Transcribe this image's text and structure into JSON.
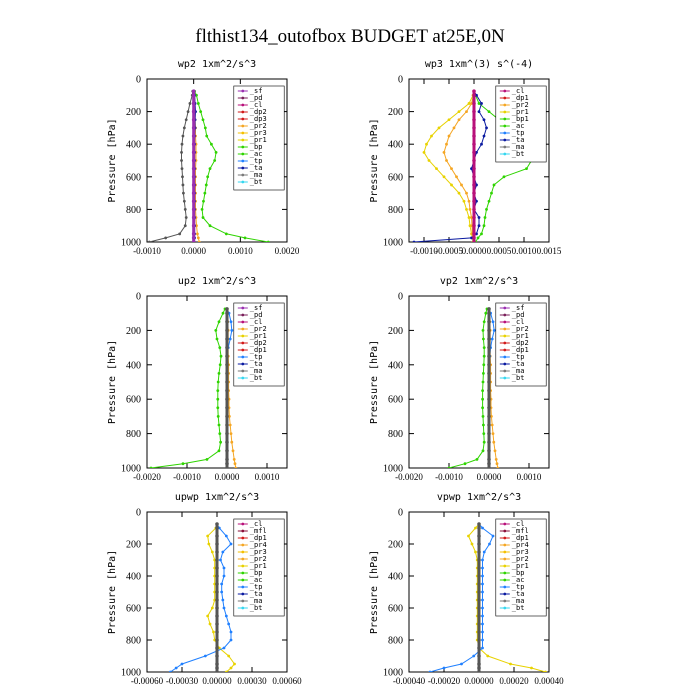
{
  "figure": {
    "title": "flthist134_outofbox  BUDGET at25E,0N"
  },
  "colors": {
    "sf": "#9a2fb0",
    "pd": "#7a1f5a",
    "cl": "#b8107a",
    "mfl": "#8a0f3a",
    "dp1": "#d21a1a",
    "dp2": "#d21a1a",
    "dp4": "#d21a1a",
    "pr1": "#e8d200",
    "pr2": "#f5a623",
    "pr3": "#f5c000",
    "bp": "#2fd400",
    "bp1": "#2fd400",
    "ac": "#2fd400",
    "tp": "#2080ff",
    "ta": "#0a1aa0",
    "ma": "#7a7a7a",
    "bt": "#35d7f0"
  },
  "chart_data": [
    {
      "type": "line",
      "title": "wp2   1xm^2/s^3",
      "ylabel": "Pressure  [hPa]",
      "xlim": [
        -0.001,
        0.002
      ],
      "ylim": [
        1000,
        0
      ],
      "xticks": [
        -0.001,
        0,
        0.001,
        0.002
      ],
      "xtick_labels": [
        "-0.0010",
        "0.0000",
        "0.0010",
        "0.0020"
      ],
      "yticks": [
        0,
        200,
        400,
        600,
        800,
        1000
      ],
      "ytick_labels": [
        "0",
        "200",
        "400",
        "600",
        "800",
        "1000"
      ],
      "legend": [
        "_sf",
        "_pd",
        "_cl",
        "_dp2",
        "_dp3",
        "_pr2",
        "_pr3",
        "_pr1",
        "_bp",
        "_ac",
        "_tp",
        "_ta",
        "_ma",
        "_bt"
      ],
      "legend_colors": [
        "sf",
        "pd",
        "cl",
        "dp2",
        "dp2",
        "pr2",
        "pr3",
        "pr1",
        "bp",
        "ac",
        "tp",
        "ta",
        "ma",
        "bt"
      ],
      "y": [
        75,
        100,
        150,
        200,
        250,
        300,
        350,
        400,
        450,
        500,
        550,
        600,
        650,
        700,
        750,
        800,
        850,
        900,
        950,
        975,
        1000
      ],
      "series": [
        {
          "key": "dp",
          "values": [
            -2e-05,
            -3e-05,
            -8e-05,
            -0.00012,
            -0.00016,
            -0.0002,
            -0.00023,
            -0.00025,
            -0.00026,
            -0.00026,
            -0.00025,
            -0.00024,
            -0.00023,
            -0.00022,
            -0.0002,
            -0.00018,
            -0.00016,
            -0.00018,
            -0.0003,
            -0.0006,
            -0.00095
          ]
        },
        {
          "key": "bp",
          "values": [
            2e-05,
            6e-05,
            0.0001,
            0.00015,
            0.0002,
            0.00025,
            0.00028,
            0.00038,
            0.00048,
            0.00045,
            0.00035,
            0.0003,
            0.00027,
            0.00024,
            0.00021,
            0.00018,
            0.0002,
            0.00035,
            0.0007,
            0.0011,
            0.0016
          ]
        },
        {
          "key": "pr2",
          "values": [
            1e-05,
            1e-05,
            2e-05,
            3e-05,
            3e-05,
            4e-05,
            4e-05,
            5e-05,
            5e-05,
            5e-05,
            4e-05,
            4e-05,
            4e-05,
            4e-05,
            4e-05,
            4e-05,
            5e-05,
            6e-05,
            8e-05,
            0.0001,
            0.00012
          ]
        },
        {
          "key": "ta",
          "values": [
            1e-05,
            2e-05,
            3e-05,
            4e-05,
            3e-05,
            3e-05,
            2e-05,
            2e-05,
            2e-05,
            2e-05,
            2e-05,
            2e-05,
            2e-05,
            2e-05,
            2e-05,
            2e-05,
            2e-05,
            2e-05,
            2e-05,
            2e-05,
            1e-05
          ]
        },
        {
          "key": "sf",
          "values": [
            0,
            0,
            0,
            0,
            0,
            0,
            0,
            0,
            0,
            0,
            0,
            0,
            0,
            0,
            0,
            0,
            0,
            0,
            0,
            0,
            0
          ]
        }
      ]
    },
    {
      "type": "line",
      "title": "wp3   1xm^(3) s^(-4)",
      "ylabel": "Pressure  [hPa]",
      "xlim": [
        -0.0013,
        0.0015
      ],
      "ylim": [
        1000,
        0
      ],
      "xticks": [
        -0.001,
        -0.0005,
        0,
        0.0005,
        0.001,
        0.0015
      ],
      "xtick_labels": [
        "-0.0010",
        "-0.0005",
        "0.0000",
        "0.0005",
        "0.0010",
        "0.0015"
      ],
      "yticks": [
        0,
        200,
        400,
        600,
        800,
        1000
      ],
      "ytick_labels": [
        "0",
        "200",
        "400",
        "600",
        "800",
        "1000"
      ],
      "legend": [
        "_cl",
        "_dp1",
        "_pr2",
        "_pr1",
        "_bp1",
        "_ac",
        "_tp",
        "_ta",
        "_ma",
        "_bt"
      ],
      "legend_colors": [
        "cl",
        "dp1",
        "pr2",
        "pr1",
        "bp1",
        "ac",
        "tp",
        "ta",
        "ma",
        "bt"
      ],
      "y": [
        75,
        100,
        150,
        200,
        250,
        300,
        350,
        400,
        450,
        500,
        550,
        600,
        650,
        700,
        750,
        800,
        850,
        900,
        950,
        975,
        1000
      ],
      "series": [
        {
          "key": "pr1",
          "values": [
            0,
            -2e-05,
            -0.0001,
            -0.0003,
            -0.0005,
            -0.0007,
            -0.00085,
            -0.00095,
            -0.001,
            -0.0009,
            -0.00075,
            -0.0006,
            -0.00045,
            -0.0003,
            -0.0002,
            -0.00015,
            -0.0001,
            -8e-05,
            -5e-05,
            -3e-05,
            -2e-05
          ]
        },
        {
          "key": "pr2",
          "values": [
            0,
            -1e-05,
            -5e-05,
            -0.00015,
            -0.0003,
            -0.0004,
            -0.0005,
            -0.00055,
            -0.0006,
            -0.00055,
            -0.00045,
            -0.00035,
            -0.00025,
            -0.00015,
            -0.0001,
            -8e-05,
            -5e-05,
            -4e-05,
            -3e-05,
            -2e-05,
            -1e-05
          ]
        },
        {
          "key": "bp1",
          "values": [
            0,
            3e-05,
            0.0001,
            0.0003,
            0.0005,
            0.0007,
            0.0008,
            0.00095,
            0.0011,
            0.00115,
            0.00105,
            0.0006,
            0.0004,
            0.00035,
            0.0003,
            0.00025,
            0.00022,
            0.0002,
            0.00015,
            8e-05,
            3e-05
          ]
        },
        {
          "key": "ta",
          "values": [
            0,
            5e-05,
            0.00015,
            0.0001,
            0.0002,
            0.00025,
            0.0002,
            0.00015,
            5e-05,
            0,
            -5e-05,
            0,
            5e-05,
            0,
            5e-05,
            0,
            0.0001,
            0.0001,
            5e-05,
            -5e-05,
            -0.0012
          ]
        },
        {
          "key": "cl",
          "values": [
            0,
            0,
            0,
            0,
            0,
            0,
            0,
            0,
            0,
            0,
            0,
            0,
            0,
            0,
            0,
            0,
            0,
            0,
            0,
            0,
            0
          ]
        }
      ]
    },
    {
      "type": "line",
      "title": "up2   1xm^2/s^3",
      "ylabel": "Pressure  [hPa]",
      "xlim": [
        -0.002,
        0.0015
      ],
      "ylim": [
        1000,
        0
      ],
      "xticks": [
        -0.002,
        -0.001,
        0,
        0.001
      ],
      "xtick_labels": [
        "-0.0020",
        "-0.0010",
        "0.0000",
        "0.0010"
      ],
      "yticks": [
        0,
        200,
        400,
        600,
        800,
        1000
      ],
      "ytick_labels": [
        "0",
        "200",
        "400",
        "600",
        "800",
        "1000"
      ],
      "legend": [
        "_sf",
        "_pd",
        "_cl",
        "_pr2",
        "_pr1",
        "_dp2",
        "_dp1",
        "_tp",
        "_ta",
        "_ma",
        "_bt"
      ],
      "legend_colors": [
        "sf",
        "pd",
        "cl",
        "pr2",
        "pr1",
        "dp2",
        "dp1",
        "tp",
        "ta",
        "ma",
        "bt"
      ],
      "y": [
        75,
        100,
        150,
        200,
        250,
        300,
        350,
        400,
        450,
        500,
        550,
        600,
        650,
        700,
        750,
        800,
        850,
        900,
        950,
        975,
        1000
      ],
      "series": [
        {
          "key": "bp",
          "values": [
            -5e-05,
            -0.0001,
            -0.0002,
            -0.00028,
            -0.00025,
            -0.00018,
            -0.00015,
            -0.00017,
            -0.0002,
            -0.00022,
            -0.00023,
            -0.00023,
            -0.00023,
            -0.00022,
            -0.0002,
            -0.00018,
            -0.00016,
            -0.0002,
            -0.0005,
            -0.0011,
            -0.0019
          ]
        },
        {
          "key": "pr2",
          "values": [
            0,
            1e-05,
            2e-05,
            3e-05,
            3e-05,
            3e-05,
            3e-05,
            4e-05,
            4e-05,
            4e-05,
            4e-05,
            5e-05,
            5e-05,
            6e-05,
            8e-05,
            0.0001,
            0.00012,
            0.00015,
            0.00018,
            0.0002,
            0.00022
          ]
        },
        {
          "key": "tp",
          "values": [
            0,
            5e-05,
            0.0001,
            0.00012,
            8e-05,
            3e-05,
            0,
            0,
            0,
            0,
            0,
            0,
            0,
            0,
            0,
            0,
            0,
            0,
            0,
            0,
            0
          ]
        },
        {
          "key": "dp",
          "values": [
            0,
            0,
            0,
            0,
            0,
            0,
            0,
            0,
            0,
            0,
            0,
            0,
            0,
            0,
            0,
            0,
            0,
            0,
            0,
            0,
            0
          ]
        }
      ]
    },
    {
      "type": "line",
      "title": "vp2   1xm^2/s^3",
      "ylabel": "Pressure  [hPa]",
      "xlim": [
        -0.002,
        0.0015
      ],
      "ylim": [
        1000,
        0
      ],
      "xticks": [
        -0.002,
        -0.001,
        0,
        0.001
      ],
      "xtick_labels": [
        "-0.0020",
        "-0.0010",
        "0.0000",
        "0.0010"
      ],
      "yticks": [
        0,
        200,
        400,
        600,
        800,
        1000
      ],
      "ytick_labels": [
        "0",
        "200",
        "400",
        "600",
        "800",
        "1000"
      ],
      "legend": [
        "_sf",
        "_pd",
        "_cl",
        "_pr2",
        "_pr1",
        "_dp2",
        "_dp1",
        "_tp",
        "_ta",
        "_ma",
        "_bt"
      ],
      "legend_colors": [
        "sf",
        "pd",
        "cl",
        "pr2",
        "pr1",
        "dp2",
        "dp1",
        "tp",
        "ta",
        "ma",
        "bt"
      ],
      "y": [
        75,
        100,
        150,
        200,
        250,
        300,
        350,
        400,
        450,
        500,
        550,
        600,
        650,
        700,
        750,
        800,
        850,
        900,
        950,
        975,
        1000
      ],
      "series": [
        {
          "key": "bp",
          "values": [
            -5e-05,
            -8e-05,
            -0.00012,
            -0.00015,
            -0.00014,
            -0.00012,
            -0.00012,
            -0.00013,
            -0.00014,
            -0.00015,
            -0.00016,
            -0.00016,
            -0.00016,
            -0.00015,
            -0.00014,
            -0.00013,
            -0.00012,
            -0.00015,
            -0.0003,
            -0.0006,
            -0.001
          ]
        },
        {
          "key": "pr2",
          "values": [
            0,
            1e-05,
            2e-05,
            3e-05,
            3e-05,
            3e-05,
            3e-05,
            4e-05,
            4e-05,
            4e-05,
            4e-05,
            5e-05,
            5e-05,
            6e-05,
            8e-05,
            0.0001,
            0.00012,
            0.00015,
            0.00018,
            0.0002,
            0.00022
          ]
        },
        {
          "key": "tp",
          "values": [
            0,
            4e-05,
            0.0001,
            0.00013,
            8e-05,
            4e-05,
            2e-05,
            0,
            0,
            0,
            0,
            0,
            0,
            0,
            0,
            0,
            0,
            0,
            0,
            0,
            0
          ]
        },
        {
          "key": "dp",
          "values": [
            0,
            0,
            0,
            0,
            0,
            0,
            0,
            0,
            0,
            0,
            0,
            0,
            0,
            0,
            0,
            0,
            0,
            0,
            0,
            0,
            0
          ]
        }
      ]
    },
    {
      "type": "line",
      "title": "upwp   1xm^2/s^3",
      "ylabel": "Pressure  [hPa]",
      "xlim": [
        -0.0006,
        0.0006
      ],
      "ylim": [
        1000,
        0
      ],
      "xticks": [
        -0.0006,
        -0.0003,
        0,
        0.0003,
        0.0006
      ],
      "xtick_labels": [
        "-0.00060",
        "-0.00030",
        "0.00000",
        "0.00030",
        "0.00060"
      ],
      "yticks": [
        0,
        200,
        400,
        600,
        800,
        1000
      ],
      "ytick_labels": [
        "0",
        "200",
        "400",
        "600",
        "800",
        "1000"
      ],
      "legend": [
        "_cl",
        "_mfl",
        "_dp1",
        "_pr4",
        "_pr3",
        "_pr2",
        "_pr1",
        "_bp",
        "_ac",
        "_tp",
        "_ta",
        "_ma",
        "_bt"
      ],
      "legend_colors": [
        "cl",
        "mfl",
        "dp1",
        "pr2",
        "pr3",
        "pr2",
        "pr1",
        "bp",
        "ac",
        "tp",
        "ta",
        "ma",
        "bt"
      ],
      "y": [
        75,
        100,
        150,
        200,
        250,
        300,
        350,
        400,
        450,
        500,
        550,
        600,
        650,
        700,
        750,
        800,
        850,
        900,
        950,
        975,
        1000
      ],
      "series": [
        {
          "key": "pr1",
          "values": [
            0,
            -1e-05,
            -8e-05,
            -7e-05,
            -4e-05,
            -2e-05,
            -2e-05,
            -2e-05,
            -2e-05,
            -2e-05,
            -2e-05,
            -4e-05,
            -8e-05,
            -6e-05,
            -3e-05,
            -2e-05,
            2e-05,
            0.0001,
            0.00015,
            0.00012,
            8e-05
          ]
        },
        {
          "key": "tp",
          "values": [
            0,
            2e-05,
            8e-05,
            0.00012,
            5e-05,
            3e-05,
            6e-05,
            6e-05,
            4e-05,
            4e-05,
            5e-05,
            6e-05,
            8e-05,
            0.0001,
            0.00012,
            0.00012,
            6e-05,
            -0.0001,
            -0.0003,
            -0.00035,
            -0.0004
          ]
        },
        {
          "key": "dp",
          "values": [
            0,
            0,
            0,
            0,
            0,
            0,
            0,
            0,
            0,
            0,
            0,
            0,
            0,
            0,
            0,
            0,
            0,
            0,
            0,
            0,
            0
          ]
        }
      ]
    },
    {
      "type": "line",
      "title": "vpwp   1xm^2/s^3",
      "ylabel": "Pressure  [hPa]",
      "xlim": [
        -0.0004,
        0.0004
      ],
      "ylim": [
        1000,
        0
      ],
      "xticks": [
        -0.0004,
        -0.0002,
        0,
        0.0002,
        0.0004
      ],
      "xtick_labels": [
        "-0.00040",
        "-0.00020",
        "0.00000",
        "0.00020",
        "0.00040"
      ],
      "yticks": [
        0,
        200,
        400,
        600,
        800,
        1000
      ],
      "ytick_labels": [
        "0",
        "200",
        "400",
        "600",
        "800",
        "1000"
      ],
      "legend": [
        "_cl",
        "_mfl",
        "_dp1",
        "_pr4",
        "_pr3",
        "_pr2",
        "_pr1",
        "_bp",
        "_ac",
        "_tp",
        "_ta",
        "_ma",
        "_bt"
      ],
      "legend_colors": [
        "cl",
        "mfl",
        "dp1",
        "pr2",
        "pr3",
        "pr2",
        "pr1",
        "bp",
        "ac",
        "tp",
        "ta",
        "ma",
        "bt"
      ],
      "y": [
        75,
        100,
        150,
        200,
        250,
        300,
        350,
        400,
        450,
        500,
        550,
        600,
        650,
        700,
        750,
        800,
        850,
        900,
        950,
        975,
        1000
      ],
      "series": [
        {
          "key": "pr1",
          "values": [
            0,
            -2e-05,
            -6e-05,
            -4e-05,
            -2e-05,
            -1e-05,
            -1e-05,
            -1e-05,
            -1e-05,
            -1e-05,
            -1e-05,
            -1e-05,
            -1e-05,
            -1e-05,
            -1e-05,
            -1e-05,
            0,
            5e-05,
            0.00018,
            0.0003,
            0.00038
          ]
        },
        {
          "key": "tp",
          "values": [
            0,
            2e-05,
            8e-05,
            6e-05,
            3e-05,
            2e-05,
            2e-05,
            2e-05,
            2e-05,
            2e-05,
            2e-05,
            2e-05,
            2e-05,
            2e-05,
            2e-05,
            2e-05,
            2e-05,
            -3e-05,
            -0.0001,
            -0.0002,
            -0.00028
          ]
        },
        {
          "key": "dp",
          "values": [
            0,
            0,
            0,
            0,
            0,
            0,
            0,
            0,
            0,
            0,
            0,
            0,
            0,
            0,
            0,
            0,
            0,
            0,
            0,
            0,
            0
          ]
        }
      ]
    }
  ]
}
